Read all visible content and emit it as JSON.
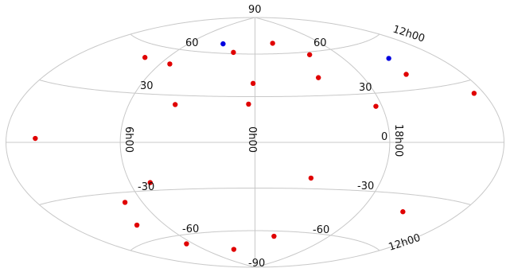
{
  "chart_data": {
    "type": "scatter",
    "projection": "hammer-aitoff",
    "coordinates": "right ascension (hours) vs declination (degrees)",
    "grid": true,
    "colors": {
      "grid": "#c8c8c8",
      "text": "#111111",
      "points_red": "#e00000",
      "points_blue": "#0000e0"
    },
    "tick_labels": {
      "dec_top": "90",
      "dec_bottom": "-90",
      "dec_60_left": "60",
      "dec_60_right": "60",
      "dec_30_left": "30",
      "dec_30_right": "30",
      "dec_0": "0",
      "dec_m30_left": "-30",
      "dec_m30_right": "-30",
      "dec_m60_left": "-60",
      "dec_m60_right": "-60",
      "ra_0": "0h00",
      "ra_6": "6h00",
      "ra_18": "18h00",
      "ra_12_top": "12h00",
      "ra_12_bottom": "12h00"
    },
    "series": [
      {
        "color": "red",
        "points": [
          {
            "ra": 1.67,
            "dec": 61
          },
          {
            "ra": 22.3,
            "dec": 68
          },
          {
            "ra": 20.0,
            "dec": 58
          },
          {
            "ra": 0.1,
            "dec": 39
          },
          {
            "ra": 0.3,
            "dec": 25
          },
          {
            "ra": 3.75,
            "dec": 24
          },
          {
            "ra": 5.4,
            "dec": 50
          },
          {
            "ra": 7.5,
            "dec": 52
          },
          {
            "ra": 20.5,
            "dec": 42
          },
          {
            "ra": 18.3,
            "dec": 22
          },
          {
            "ra": 15.4,
            "dec": 39
          },
          {
            "ra": 12.6,
            "dec": 24
          },
          {
            "ra": 10.3,
            "dec": 2
          },
          {
            "ra": 5.0,
            "dec": -25
          },
          {
            "ra": 6.95,
            "dec": -36
          },
          {
            "ra": 21.4,
            "dec": -23
          },
          {
            "ra": 15.5,
            "dec": -40
          },
          {
            "ra": 7.8,
            "dec": -50
          },
          {
            "ra": 6.6,
            "dec": -66
          },
          {
            "ra": 2.7,
            "dec": -74
          },
          {
            "ra": 22.4,
            "dec": -64
          }
        ]
      },
      {
        "color": "blue",
        "points": [
          {
            "ra": 3.0,
            "dec": 67
          },
          {
            "ra": 15.1,
            "dec": 49
          }
        ]
      }
    ]
  }
}
